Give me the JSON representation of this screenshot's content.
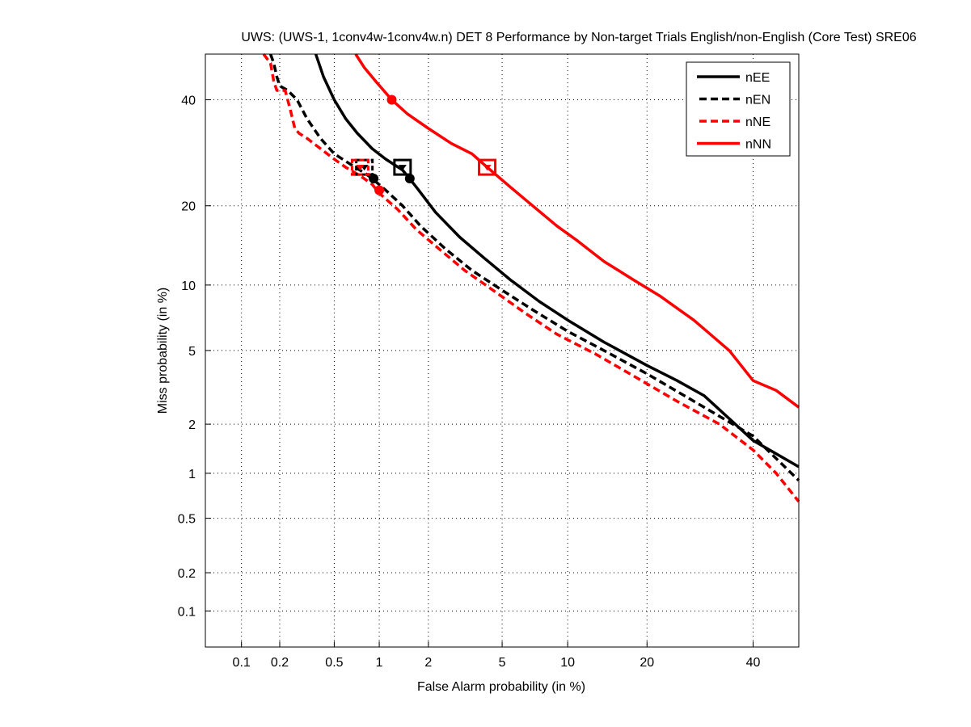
{
  "chart_data": {
    "type": "line",
    "scale": "probit (DET normal-deviate)",
    "title": "UWS: (UWS-1, 1conv4w-1conv4w.n) DET 8 Performance by Non-target Trials English/non-English (Core Test) SRE06",
    "xlabel": "False Alarm probability (in %)",
    "ylabel": "Miss probability (in %)",
    "xlim": [
      0.05,
      50
    ],
    "ylim": [
      0.05,
      50
    ],
    "grid": true,
    "x_ticks": [
      0.1,
      0.2,
      0.5,
      1,
      2,
      5,
      10,
      20,
      40
    ],
    "y_ticks": [
      0.1,
      0.2,
      0.5,
      1,
      2,
      5,
      10,
      20,
      40
    ],
    "x_tick_labels": [
      "0.1",
      "0.2",
      "0.5",
      "1",
      "2",
      "5",
      "10",
      "20",
      "40"
    ],
    "y_tick_labels": [
      "0.1",
      "0.2",
      "0.5",
      "1",
      "2",
      "5",
      "10",
      "20",
      "40"
    ],
    "legend": {
      "placement": "top-right",
      "entries": [
        "nEE",
        "nEN",
        "nNE",
        "nNN"
      ]
    },
    "series": [
      {
        "name": "nEE",
        "color": "#000000",
        "style": "solid",
        "x": [
          0.37,
          0.42,
          0.5,
          0.6,
          0.72,
          0.9,
          1.1,
          1.4,
          1.7,
          2.2,
          3.0,
          4.0,
          5.5,
          7.5,
          10,
          14,
          20,
          25,
          30,
          40,
          50
        ],
        "y": [
          50,
          45,
          40,
          36,
          33,
          30,
          28,
          26,
          23,
          19,
          15.5,
          13,
          10.5,
          8.5,
          7,
          5.5,
          4.2,
          3.5,
          2.9,
          1.6,
          1.1
        ],
        "dcf_box": [
          1.4,
          26.5
        ],
        "min_dcf_circle": [
          1.55,
          24.5
        ]
      },
      {
        "name": "nEN",
        "color": "#000000",
        "style": "dashed",
        "x": [
          0.17,
          0.18,
          0.19,
          0.2,
          0.23,
          0.27,
          0.32,
          0.4,
          0.5,
          0.65,
          0.8,
          0.9,
          1.1,
          1.4,
          1.8,
          2.5,
          3.5,
          5,
          7,
          10,
          14,
          20,
          30,
          40,
          50
        ],
        "y": [
          50,
          48,
          45,
          43,
          42,
          40,
          36,
          32,
          29,
          27,
          25.5,
          24.5,
          22.5,
          20,
          17,
          14,
          11.5,
          9.5,
          7.8,
          6.2,
          5,
          3.8,
          2.5,
          1.7,
          0.9
        ],
        "dcf_box": [
          0.8,
          26.5
        ],
        "min_dcf_circle": [
          0.92,
          24.5
        ]
      },
      {
        "name": "nNE",
        "color": "#ff0000",
        "style": "dashed",
        "x": [
          0.15,
          0.17,
          0.18,
          0.19,
          0.22,
          0.24,
          0.26,
          0.28,
          0.32,
          0.4,
          0.5,
          0.6,
          0.75,
          0.9,
          1.0,
          1.3,
          1.7,
          2.3,
          3.2,
          4.5,
          6.5,
          9,
          13,
          18,
          25,
          33,
          40,
          45,
          50
        ],
        "y": [
          50,
          48,
          44,
          42,
          42,
          38,
          34,
          33,
          32,
          30,
          28,
          26.5,
          25,
          23.5,
          22,
          19.5,
          16.5,
          14,
          11.5,
          9.5,
          7.5,
          6,
          4.8,
          3.7,
          2.7,
          2.0,
          1.4,
          1.0,
          0.65
        ],
        "dcf_box": [
          0.75,
          26.5
        ],
        "min_dcf_circle": [
          1.0,
          22.5
        ]
      },
      {
        "name": "nNN",
        "color": "#ff0000",
        "style": "solid",
        "x": [
          0.7,
          0.8,
          0.95,
          1.2,
          1.5,
          2.0,
          2.7,
          3.5,
          4.2,
          5.5,
          7,
          9,
          11,
          14,
          18,
          22,
          28,
          35,
          40,
          45,
          50
        ],
        "y": [
          50,
          47,
          44,
          40,
          37,
          34,
          31,
          29,
          26.5,
          23,
          20,
          17,
          15,
          12.5,
          10.5,
          9,
          7,
          5,
          3.5,
          3.1,
          2.5
        ],
        "dcf_box": [
          4.2,
          26.5
        ],
        "min_dcf_circle": [
          1.2,
          40
        ]
      }
    ]
  }
}
